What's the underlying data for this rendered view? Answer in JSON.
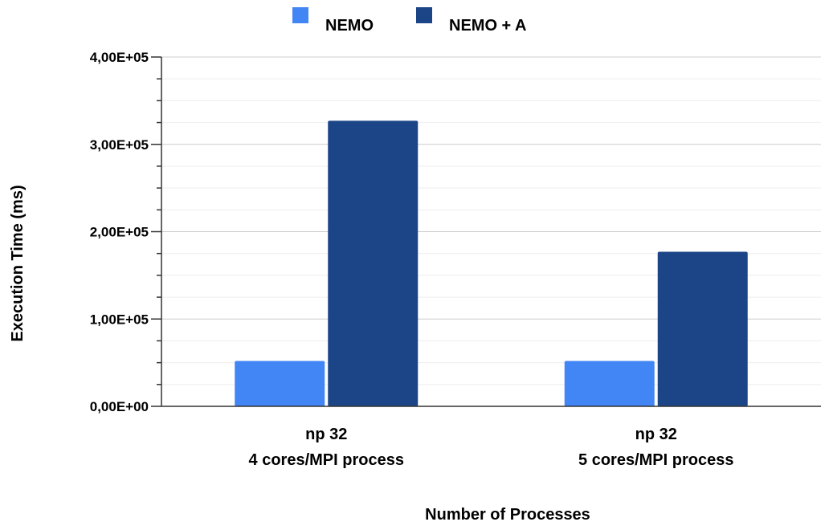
{
  "chart_data": {
    "type": "bar",
    "title": "",
    "xlabel": "Number of Processes",
    "ylabel": "Execution Time (ms)",
    "categories": [
      [
        "np 32",
        "4 cores/MPI process"
      ],
      [
        "np 32",
        "5 cores/MPI process"
      ]
    ],
    "series": [
      {
        "name": "NEMO",
        "color": "#4285f4",
        "values": [
          52000,
          52000
        ]
      },
      {
        "name": "NEMO + A",
        "color": "#1c4587",
        "values": [
          327000,
          177000
        ]
      }
    ],
    "ylim": [
      0,
      400000
    ],
    "y_ticks": [
      {
        "value": 0,
        "label": "0,00E+00"
      },
      {
        "value": 100000,
        "label": "1,00E+05"
      },
      {
        "value": 200000,
        "label": "2,00E+05"
      },
      {
        "value": 300000,
        "label": "3,00E+05"
      },
      {
        "value": 400000,
        "label": "4,00E+05"
      }
    ],
    "minor_ticks_per_interval": 3,
    "grid": true,
    "legend_position": "top-center"
  }
}
